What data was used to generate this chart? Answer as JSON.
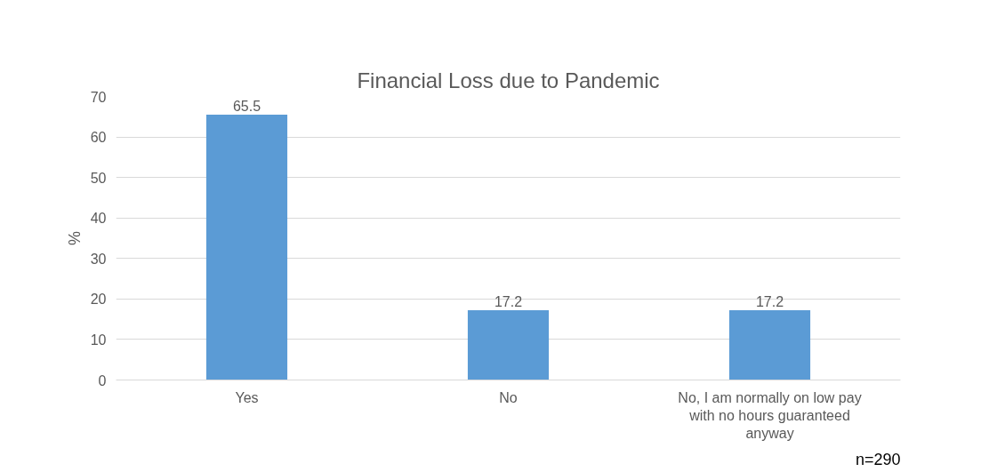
{
  "chart_data": {
    "type": "bar",
    "title": "Financial Loss due to Pandemic",
    "ylabel": "%",
    "categories": [
      "Yes",
      "No",
      "No, I am normally on low pay with no hours guaranteed anyway"
    ],
    "values": [
      65.5,
      17.2,
      17.2
    ],
    "color": "#5b9bd5",
    "ylim": [
      0,
      70
    ],
    "yticks": [
      0,
      10,
      20,
      30,
      40,
      50,
      60,
      70
    ],
    "grid": "y",
    "data_labels": true,
    "annotations": [
      "n=290"
    ]
  }
}
